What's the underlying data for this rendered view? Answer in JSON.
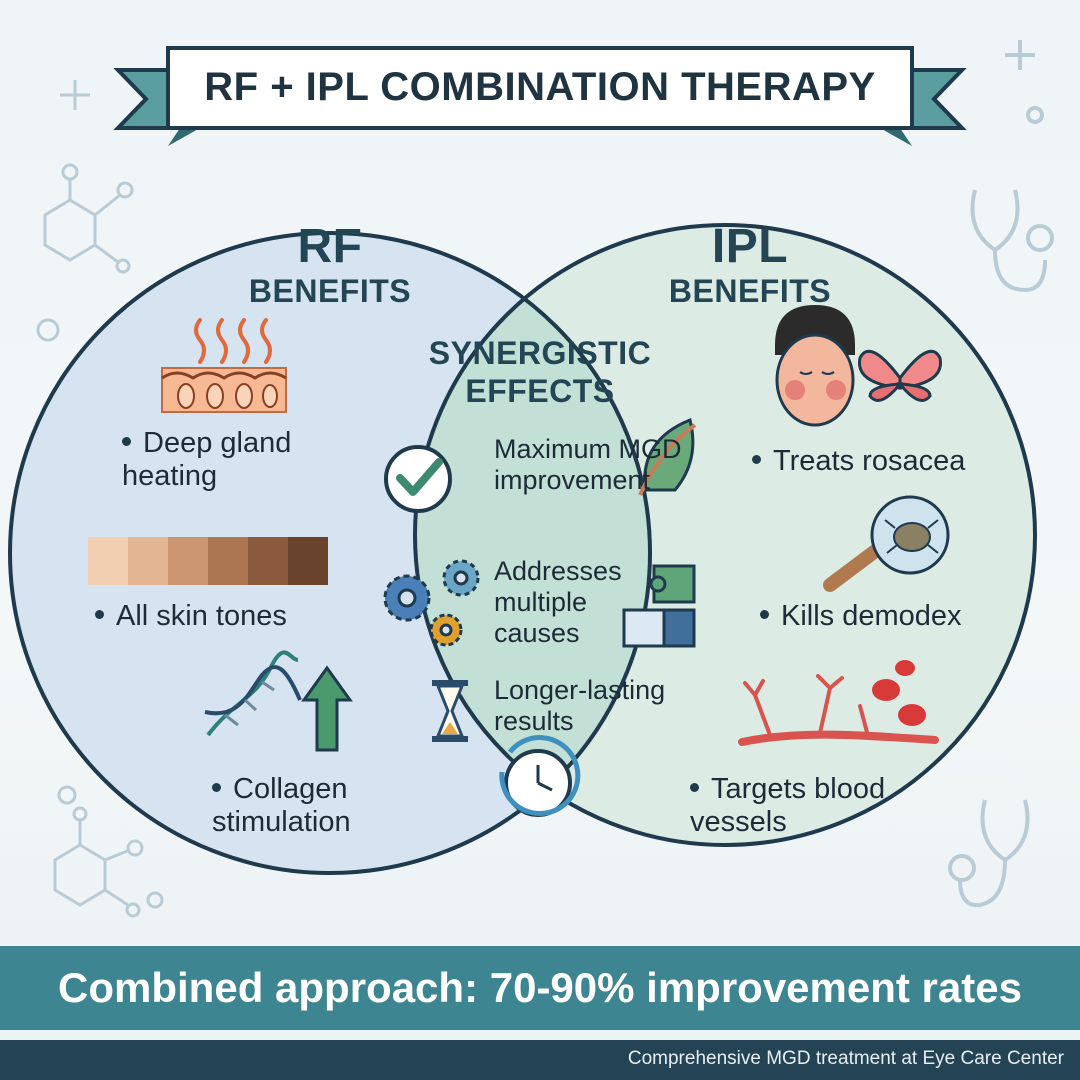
{
  "title": "RF + IPL COMBINATION THERAPY",
  "rf": {
    "heading_line1": "RF",
    "heading_line2": "BENEFITS",
    "benefits": [
      "Deep gland heating",
      "All skin tones",
      "Collagen stimulation"
    ],
    "skin_tone_swatches": [
      "#f2cfb0",
      "#e3b592",
      "#cc9673",
      "#ad7653",
      "#8b5a3e",
      "#6a432c"
    ]
  },
  "ipl": {
    "heading_line1": "IPL",
    "heading_line2": "BENEFITS",
    "benefits": [
      "Treats rosacea",
      "Kills demodex",
      "Targets blood vessels"
    ]
  },
  "synergy": {
    "heading_line1": "SYNERGISTIC",
    "heading_line2": "EFFECTS",
    "effects": [
      "Maximum MGD improvement",
      "Addresses multiple causes",
      "Longer-lasting results"
    ]
  },
  "footer": {
    "headline": "Combined approach: 70-90% improvement rates",
    "credit": "Comprehensive MGD treatment at Eye Care Center"
  },
  "colors": {
    "rf_circle": "#d6e4f1",
    "ipl_circle": "#dcece4",
    "overlap": "#c3e0d6",
    "outline": "#1f3a4c",
    "accent_teal": "#3d8590",
    "ribbon": "#4f9a95"
  },
  "icons": [
    "heat-waves-icon",
    "skin-layer-icon",
    "dna-helix-icon",
    "up-arrow-icon",
    "checkmark-icon",
    "eyelid-gland-icon",
    "gears-icon",
    "puzzle-icon",
    "hourglass-icon",
    "clock-icon",
    "face-rosacea-icon",
    "butterfly-icon",
    "demodex-mite-icon",
    "blood-vessel-icon",
    "molecule-icon",
    "stethoscope-icon"
  ]
}
